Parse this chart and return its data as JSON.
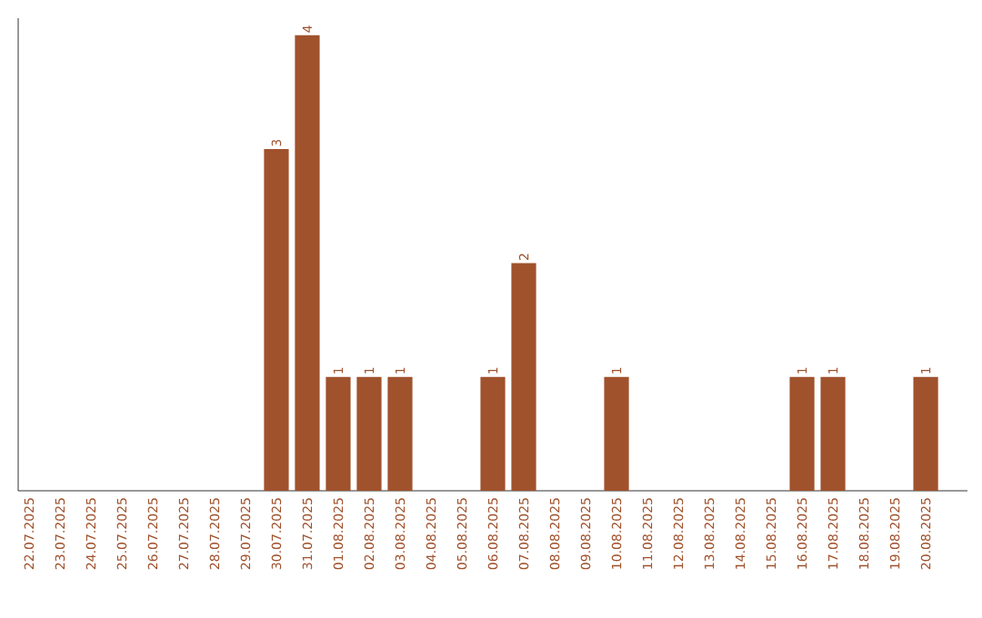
{
  "chart_data": {
    "type": "bar",
    "categories": [
      "22.07.2025",
      "23.07.2025",
      "24.07.2025",
      "25.07.2025",
      "26.07.2025",
      "27.07.2025",
      "28.07.2025",
      "29.07.2025",
      "30.07.2025",
      "31.07.2025",
      "01.08.2025",
      "02.08.2025",
      "03.08.2025",
      "04.08.2025",
      "05.08.2025",
      "06.08.2025",
      "07.08.2025",
      "08.08.2025",
      "09.08.2025",
      "10.08.2025",
      "11.08.2025",
      "12.08.2025",
      "13.08.2025",
      "14.08.2025",
      "15.08.2025",
      "16.08.2025",
      "17.08.2025",
      "18.08.2025",
      "19.08.2025",
      "20.08.2025"
    ],
    "values": [
      0,
      0,
      0,
      0,
      0,
      0,
      0,
      0,
      3,
      4,
      1,
      1,
      1,
      0,
      0,
      1,
      2,
      0,
      0,
      1,
      0,
      0,
      0,
      0,
      0,
      1,
      1,
      0,
      0,
      1
    ],
    "value_labels": [
      null,
      null,
      null,
      null,
      null,
      null,
      null,
      null,
      "3",
      "4",
      "1",
      "1",
      "1",
      null,
      null,
      "1",
      "2",
      null,
      null,
      "1",
      null,
      null,
      null,
      null,
      null,
      "1",
      "1",
      null,
      null,
      "1"
    ],
    "color": "#a0522d",
    "ylim": [
      0,
      4.15
    ],
    "tick_labels": "x"
  }
}
